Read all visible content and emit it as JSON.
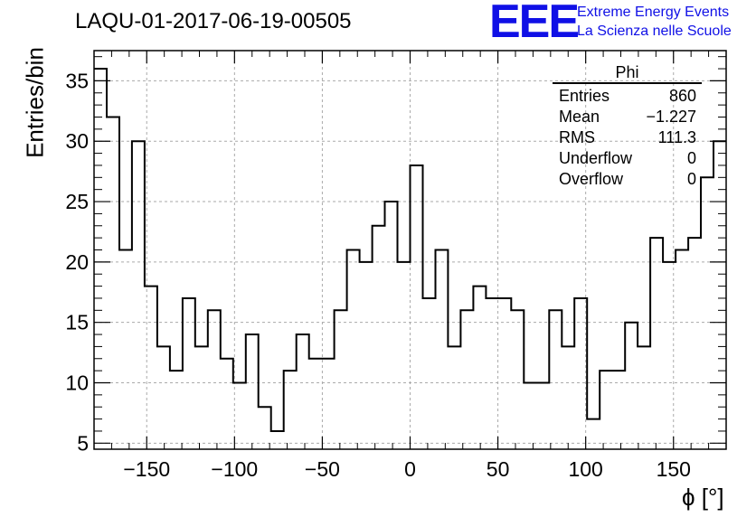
{
  "title": "LAQU-01-2017-06-19-00505",
  "logo": {
    "mark": "EEE",
    "line1": "Extreme Energy Events",
    "line2": "La Scienza nelle Scuole",
    "color": "#1010e6"
  },
  "stats_box": {
    "name": "Phi",
    "rows": [
      {
        "label": "Entries",
        "value": "860"
      },
      {
        "label": "Mean",
        "value": "−1.227"
      },
      {
        "label": "RMS",
        "value": "111.3"
      },
      {
        "label": "Underflow",
        "value": "0"
      },
      {
        "label": "Overflow",
        "value": "0"
      }
    ]
  },
  "chart_data": {
    "type": "bar",
    "style": "step-histogram",
    "xlabel": "ϕ [°]",
    "ylabel": "Entries/bin",
    "xlim": [
      -180,
      180
    ],
    "ylim": [
      4.5,
      37.5
    ],
    "bin_width": 7.2,
    "xticks": [
      -150,
      -100,
      -50,
      0,
      50,
      100,
      150
    ],
    "xtick_labels": [
      "−150",
      "−100",
      "−50",
      "0",
      "50",
      "100",
      "150"
    ],
    "yticks": [
      5,
      10,
      15,
      20,
      25,
      30,
      35
    ],
    "ytick_labels": [
      "5",
      "10",
      "15",
      "20",
      "25",
      "30",
      "35"
    ],
    "grid": true,
    "values": [
      36,
      32,
      21,
      30,
      18,
      13,
      11,
      17,
      13,
      16,
      12,
      10,
      14,
      8,
      6,
      11,
      14,
      12,
      12,
      16,
      21,
      20,
      23,
      25,
      20,
      28,
      17,
      21,
      13,
      16,
      18,
      17,
      17,
      16,
      10,
      10,
      16,
      13,
      17,
      7,
      11,
      11,
      15,
      13,
      22,
      20,
      21,
      22,
      27,
      30
    ],
    "line_color": "#000000"
  }
}
